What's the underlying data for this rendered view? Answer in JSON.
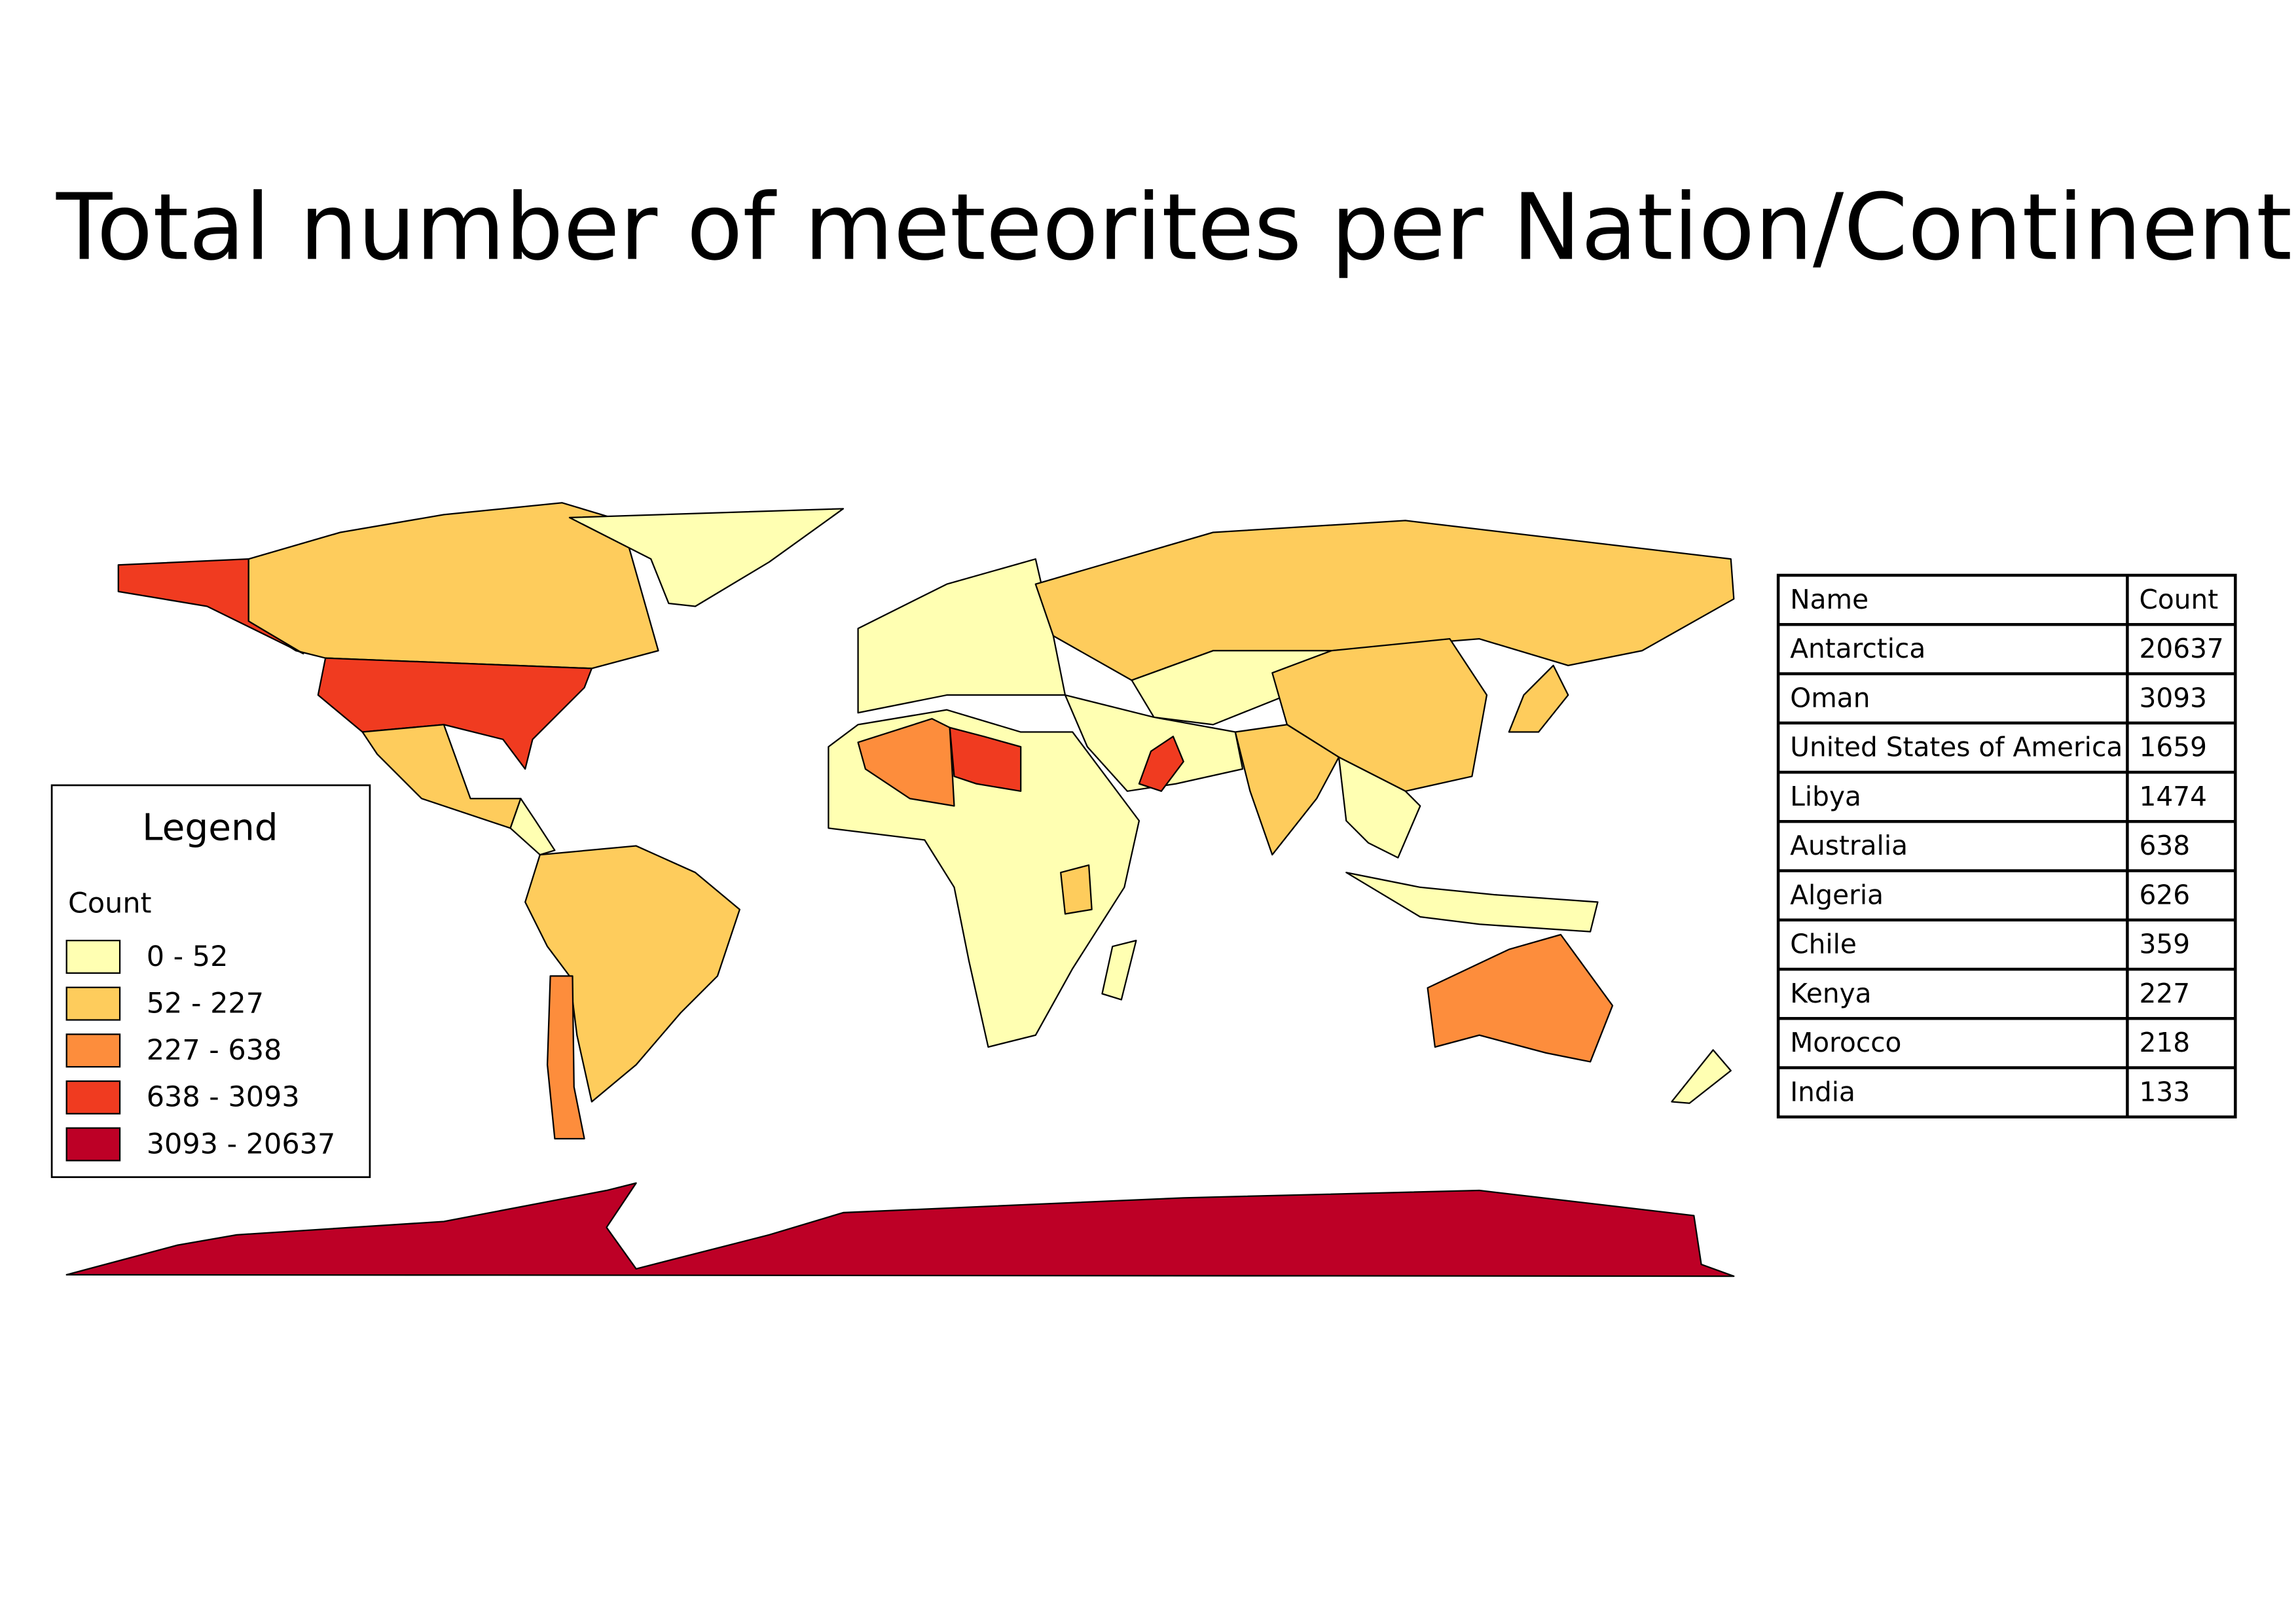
{
  "title": "Total number of meteorites per Nation/Continent",
  "legend": {
    "title": "Legend",
    "field": "Count",
    "classes": [
      {
        "label": "0 - 52",
        "color": "#ffffb2"
      },
      {
        "label": "52 - 227",
        "color": "#fecc5c"
      },
      {
        "label": "227 - 638",
        "color": "#fd8d3c"
      },
      {
        "label": "638 - 3093",
        "color": "#f03b20"
      },
      {
        "label": "3093 - 20637",
        "color": "#bd0026"
      }
    ]
  },
  "table": {
    "header": [
      "Name",
      "Count"
    ],
    "rows": [
      [
        "Antarctica",
        20637
      ],
      [
        "Oman",
        3093
      ],
      [
        "United States of America",
        1659
      ],
      [
        "Libya",
        1474
      ],
      [
        "Australia",
        638
      ],
      [
        "Algeria",
        626
      ],
      [
        "Chile",
        359
      ],
      [
        "Kenya",
        227
      ],
      [
        "Morocco",
        218
      ],
      [
        "India",
        133
      ]
    ]
  }
}
